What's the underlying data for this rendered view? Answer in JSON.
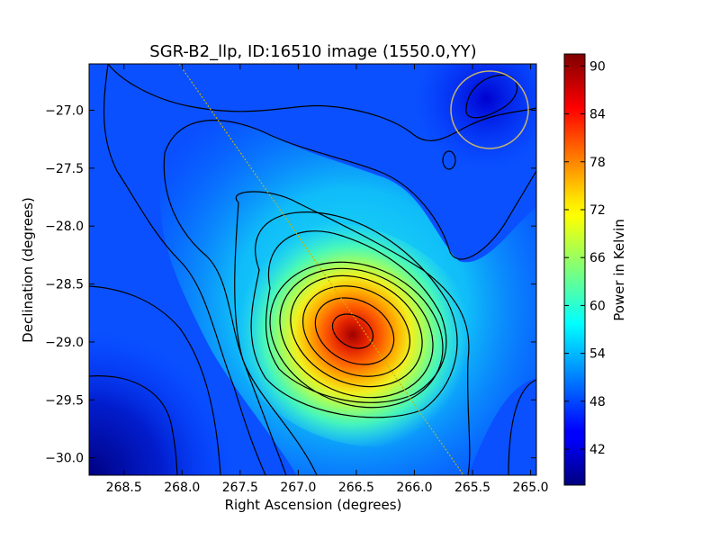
{
  "chart_data": {
    "type": "heatmap",
    "title": "SGR-B2_llp, ID:16510 image (1550.0,YY)",
    "xlabel": "Right Ascension (degrees)",
    "ylabel": "Declination (degrees)",
    "x_range": [
      268.8,
      264.95
    ],
    "y_range": [
      -30.15,
      -26.6
    ],
    "x_ticks": [
      "268.5",
      "268.0",
      "267.5",
      "267.0",
      "266.5",
      "266.0",
      "265.5",
      "265.0"
    ],
    "x_tick_values": [
      268.5,
      268.0,
      267.5,
      267.0,
      266.5,
      266.0,
      265.5,
      265.0
    ],
    "y_ticks": [
      "−27.0",
      "−27.5",
      "−28.0",
      "−28.5",
      "−29.0",
      "−29.5",
      "−30.0"
    ],
    "y_tick_values": [
      -27.0,
      -27.5,
      -28.0,
      -28.5,
      -29.0,
      -29.5,
      -30.0
    ],
    "colorbar": {
      "label": "Power in Kelvin",
      "range": [
        37.5,
        91.5
      ],
      "ticks": [
        "42",
        "48",
        "54",
        "60",
        "66",
        "72",
        "78",
        "84",
        "90"
      ],
      "tick_values": [
        42,
        48,
        54,
        60,
        66,
        72,
        78,
        84,
        90
      ],
      "colormap": "jet"
    },
    "peak": {
      "ra": 266.45,
      "dec": -28.92,
      "value": 91
    },
    "beam_circle": {
      "ra": 265.32,
      "dec": -27.0,
      "color": "#c8b46e"
    },
    "galactic_plane_line": {
      "from": [
        268.0,
        -26.6
      ],
      "to": [
        265.55,
        -30.15
      ],
      "color": "#c8b400"
    },
    "colors": {
      "contour": "#000000",
      "axis": "#000000"
    }
  }
}
